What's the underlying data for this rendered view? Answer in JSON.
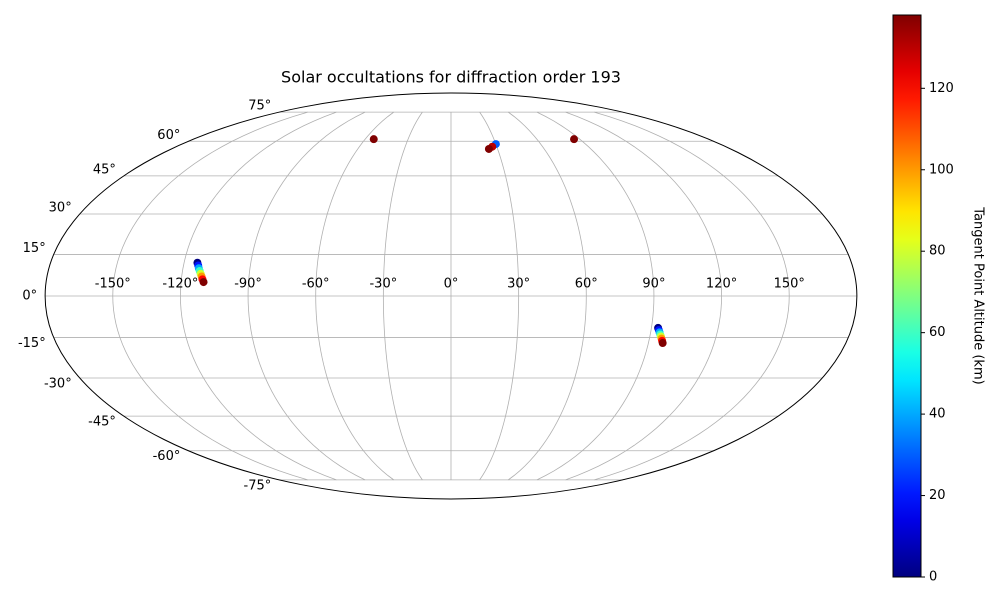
{
  "chart_data": {
    "type": "scatter",
    "projection": "mollweide",
    "title": "Solar occultations for diffraction order 193",
    "xlim": [
      -180,
      180
    ],
    "ylim": [
      -90,
      90
    ],
    "xticks": [
      {
        "value": -150,
        "label": "-150°"
      },
      {
        "value": -120,
        "label": "-120°"
      },
      {
        "value": -90,
        "label": "-90°"
      },
      {
        "value": -60,
        "label": "-60°"
      },
      {
        "value": -30,
        "label": "-30°"
      },
      {
        "value": 0,
        "label": "0°"
      },
      {
        "value": 30,
        "label": "30°"
      },
      {
        "value": 60,
        "label": "60°"
      },
      {
        "value": 90,
        "label": "90°"
      },
      {
        "value": 120,
        "label": "120°"
      },
      {
        "value": 150,
        "label": "150°"
      }
    ],
    "yticks": [
      {
        "value": -75,
        "label": "-75°"
      },
      {
        "value": -60,
        "label": "-60°"
      },
      {
        "value": -45,
        "label": "-45°"
      },
      {
        "value": -30,
        "label": "-30°"
      },
      {
        "value": -15,
        "label": "-15°"
      },
      {
        "value": 0,
        "label": "0°"
      },
      {
        "value": 15,
        "label": "15°"
      },
      {
        "value": 30,
        "label": "30°"
      },
      {
        "value": 45,
        "label": "45°"
      },
      {
        "value": 60,
        "label": "60°"
      },
      {
        "value": 75,
        "label": "75°"
      }
    ],
    "grid": true,
    "x": [
      -114,
      -113.4,
      -112.9,
      -112.3,
      -111.7,
      -111.1,
      -110.6,
      -110,
      93,
      93.5,
      94,
      94.5,
      95,
      95.5,
      96,
      96.5,
      -54,
      86,
      30,
      27,
      24.4
    ],
    "y": [
      12,
      11,
      10,
      9,
      8,
      7,
      6,
      5,
      -11.5,
      -12.3,
      -13.1,
      -13.9,
      -14.6,
      -15.4,
      -16.2,
      -17,
      61,
      61,
      58.7,
      57.5,
      56.5
    ],
    "c": [
      0,
      20,
      40,
      60,
      80,
      100,
      120,
      138,
      0,
      20,
      40,
      60,
      80,
      100,
      120,
      138,
      138,
      138,
      30,
      130,
      138
    ],
    "colormap": "jet",
    "clim": [
      0,
      138
    ],
    "cticks": [
      0,
      20,
      40,
      60,
      80,
      100,
      120
    ],
    "colorbar_label": "Tangent Point Altitude (km)"
  }
}
